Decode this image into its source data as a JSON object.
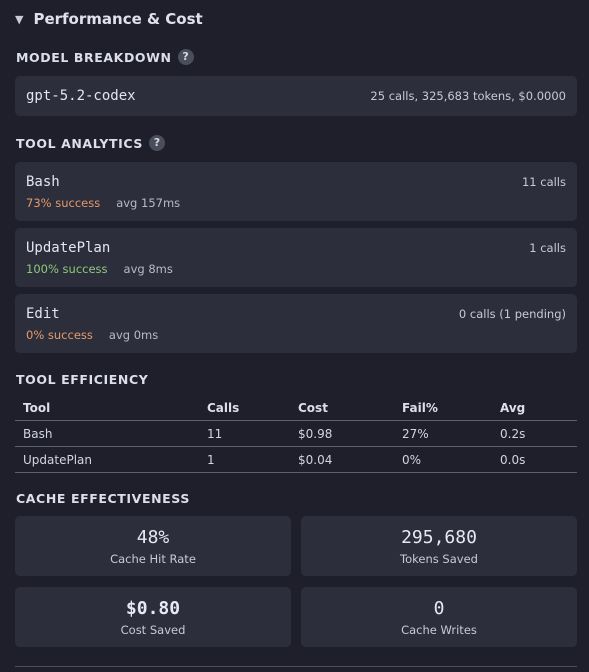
{
  "section": {
    "caret": "▼",
    "title": "Performance & Cost"
  },
  "model_breakdown": {
    "heading": "MODEL BREAKDOWN",
    "help": "?",
    "model": {
      "name": "gpt-5.2-codex",
      "stats": "25 calls, 325,683 tokens, $0.0000"
    }
  },
  "tool_analytics": {
    "heading": "TOOL ANALYTICS",
    "help": "?",
    "tools": [
      {
        "name": "Bash",
        "calls": "11 calls",
        "success": "73% success",
        "avg": "avg 157ms"
      },
      {
        "name": "UpdatePlan",
        "calls": "1 calls",
        "success": "100% success",
        "avg": "avg 8ms"
      },
      {
        "name": "Edit",
        "calls": "0 calls (1 pending)",
        "success": "0% success",
        "avg": "avg 0ms"
      }
    ]
  },
  "tool_efficiency": {
    "heading": "TOOL EFFICIENCY",
    "columns": [
      "Tool",
      "Calls",
      "Cost",
      "Fail%",
      "Avg"
    ],
    "rows": [
      [
        "Bash",
        "11",
        "$0.98",
        "27%",
        "0.2s"
      ],
      [
        "UpdatePlan",
        "1",
        "$0.04",
        "0%",
        "0.0s"
      ]
    ]
  },
  "cache": {
    "heading": "CACHE EFFECTIVENESS",
    "stats": [
      {
        "value": "48%",
        "label": "Cache Hit Rate"
      },
      {
        "value": "295,680",
        "label": "Tokens Saved"
      },
      {
        "value": "$0.80",
        "label": "Cost Saved"
      },
      {
        "value": "0",
        "label": "Cache Writes"
      }
    ]
  },
  "colors": {
    "background": "#1e1f2b",
    "card": "#2c2e3c",
    "success_warn": "#e59a6a",
    "success_good": "#8fc97a"
  }
}
